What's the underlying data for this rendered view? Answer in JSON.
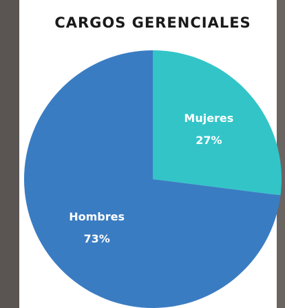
{
  "chart_data": {
    "type": "pie",
    "title": "CARGOS GERENCIALES",
    "categories": [
      "Mujeres",
      "Hombres"
    ],
    "values": [
      27,
      73
    ],
    "value_labels": [
      "27%",
      "73%"
    ],
    "colors": [
      "#33c4c8",
      "#3a7cc2"
    ]
  }
}
